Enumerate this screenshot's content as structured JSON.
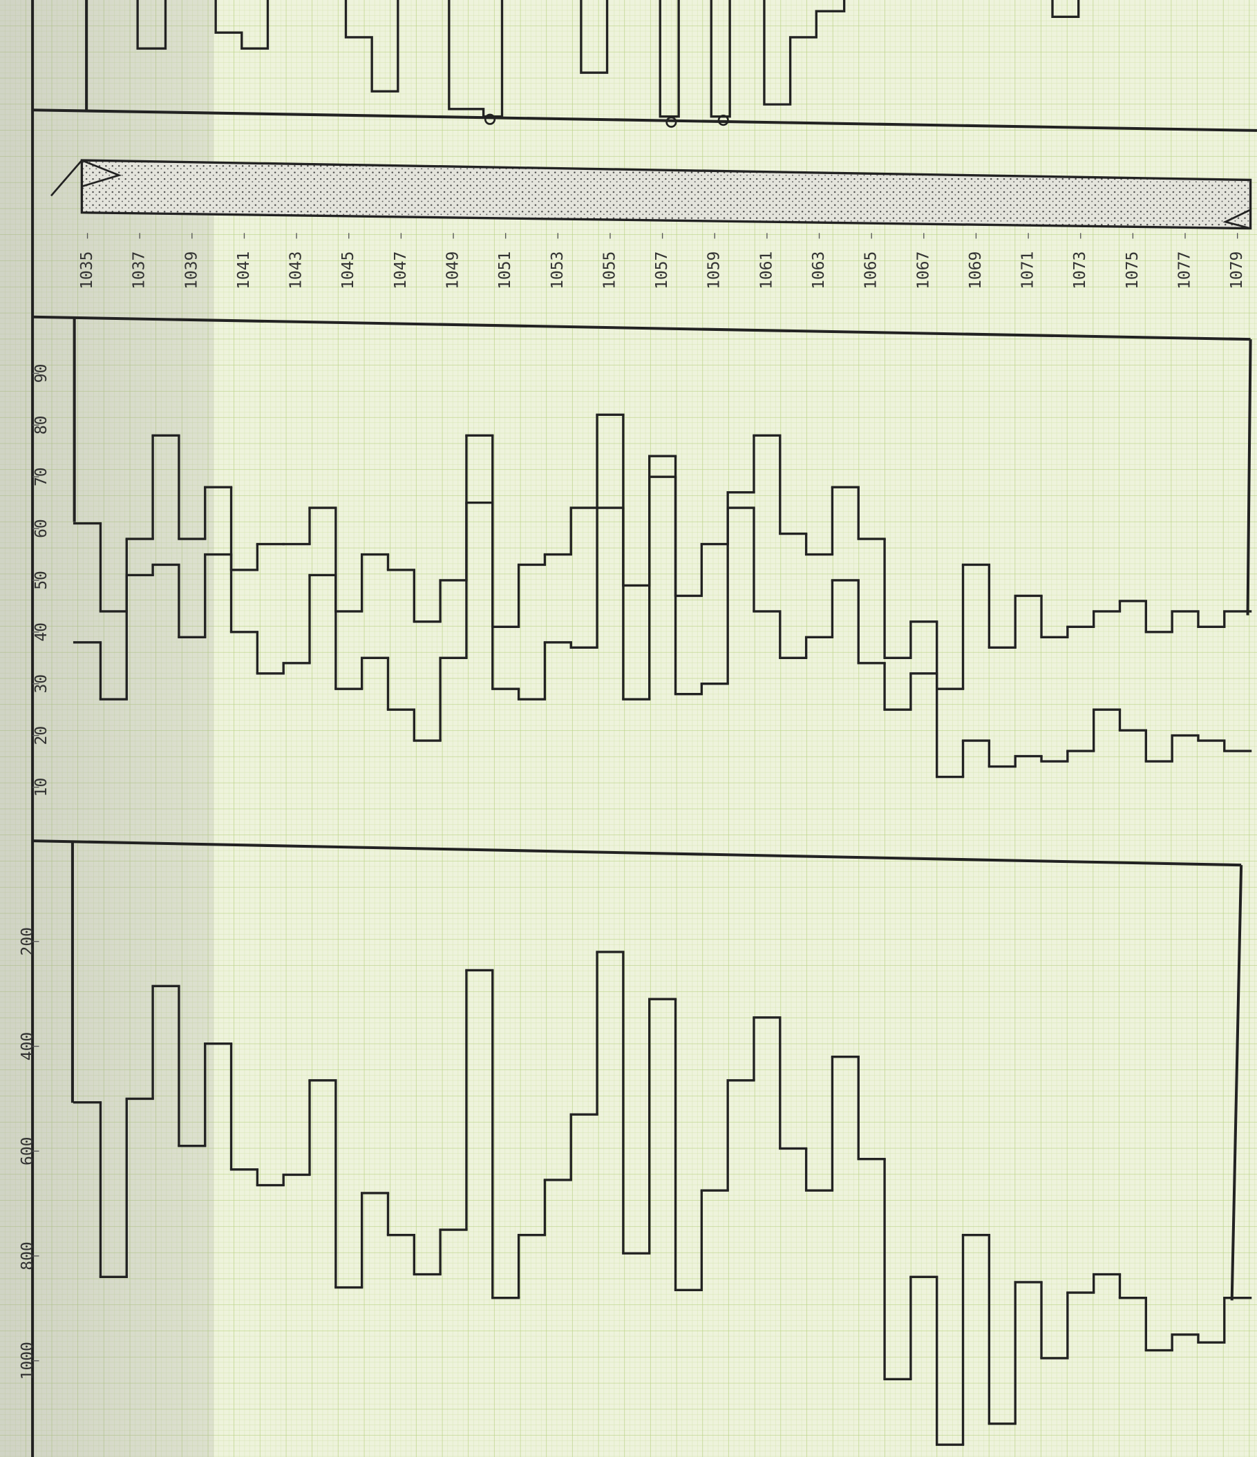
{
  "chart_data": [
    {
      "type": "step",
      "x": [
        1035,
        1036,
        1037,
        1038,
        1039,
        1040,
        1041,
        1042,
        1043,
        1044,
        1045,
        1046,
        1047,
        1048,
        1049,
        1050,
        1051,
        1052,
        1053,
        1054,
        1055,
        1056,
        1057,
        1058,
        1059,
        1060,
        1061,
        1062,
        1063,
        1064,
        1065,
        1066,
        1067,
        1068,
        1069,
        1070,
        1071,
        1072,
        1073,
        1074,
        1075,
        1076,
        1077,
        1078,
        1079
      ],
      "xlim": [
        1035,
        1080
      ],
      "xticks": [
        1035,
        1037,
        1039,
        1041,
        1043,
        1045,
        1047,
        1049,
        1051,
        1053,
        1055,
        1057,
        1059,
        1061,
        1063,
        1065,
        1067,
        1069,
        1071,
        1073,
        1075,
        1077,
        1079
      ],
      "ylim": [
        0,
        100
      ],
      "yticks": [
        90,
        80,
        70,
        60,
        50,
        40,
        30,
        20,
        10
      ],
      "color": "#222222",
      "series": [
        {
          "color": "#222222",
          "values": [
            61,
            44,
            58,
            78,
            58,
            68,
            52,
            57,
            57,
            64,
            44,
            55,
            52,
            42,
            50,
            78,
            41,
            53,
            55,
            64,
            82,
            49,
            74,
            47,
            57,
            67,
            78,
            59,
            55,
            68,
            58,
            35,
            42,
            29,
            53,
            37,
            47,
            39,
            41,
            44,
            46,
            40,
            44,
            41,
            44
          ]
        },
        {
          "color": "#222222",
          "values": [
            38,
            27,
            51,
            53,
            39,
            55,
            40,
            32,
            34,
            51,
            29,
            35,
            25,
            19,
            35,
            65,
            29,
            27,
            38,
            37,
            64,
            27,
            70,
            28,
            30,
            64,
            44,
            35,
            39,
            50,
            34,
            25,
            32,
            12,
            19,
            14,
            16,
            15,
            17,
            25,
            21,
            15,
            20,
            19,
            17
          ]
        }
      ]
    },
    {
      "type": "step",
      "x": [
        1035,
        1036,
        1037,
        1038,
        1039,
        1040,
        1041,
        1042,
        1043,
        1044,
        1045,
        1046,
        1047,
        1048,
        1049,
        1050,
        1051,
        1052,
        1053,
        1054,
        1055,
        1056,
        1057,
        1058,
        1059,
        1060,
        1061,
        1062,
        1063,
        1064,
        1065,
        1066,
        1067,
        1068,
        1069,
        1070,
        1071,
        1072,
        1073,
        1074,
        1075,
        1076,
        1077,
        1078,
        1079
      ],
      "xlim": [
        1035,
        1080
      ],
      "ylim": [
        0,
        1180
      ],
      "yticks": [
        200,
        400,
        600,
        800,
        1000
      ],
      "color": "#222222",
      "series": [
        {
          "color": "#222222",
          "values": [
            507,
            840,
            500,
            285,
            590,
            395,
            635,
            665,
            645,
            465,
            860,
            680,
            760,
            835,
            750,
            255,
            880,
            760,
            655,
            530,
            220,
            795,
            310,
            865,
            675,
            465,
            345,
            595,
            675,
            420,
            615,
            1035,
            840,
            1160,
            760,
            1120,
            850,
            995,
            870,
            835,
            880,
            980,
            950,
            965,
            880
          ]
        }
      ]
    }
  ]
}
